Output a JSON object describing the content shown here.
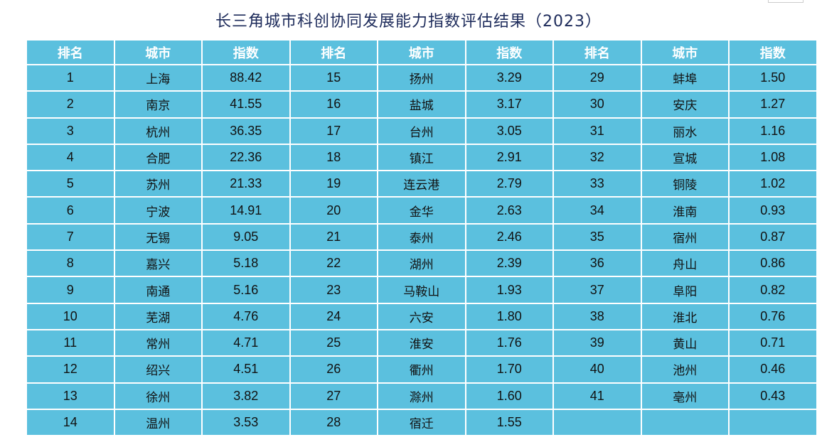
{
  "title": "长三角城市科创协同发展能力指数评估结果（2023）",
  "headers": [
    "排名",
    "城市",
    "指数"
  ],
  "entries": [
    [
      "1",
      "上海",
      "88.42"
    ],
    [
      "2",
      "南京",
      "41.55"
    ],
    [
      "3",
      "杭州",
      "36.35"
    ],
    [
      "4",
      "合肥",
      "22.36"
    ],
    [
      "5",
      "苏州",
      "21.33"
    ],
    [
      "6",
      "宁波",
      "14.91"
    ],
    [
      "7",
      "无锡",
      "9.05"
    ],
    [
      "8",
      "嘉兴",
      "5.18"
    ],
    [
      "9",
      "南通",
      "5.16"
    ],
    [
      "10",
      "芜湖",
      "4.76"
    ],
    [
      "11",
      "常州",
      "4.71"
    ],
    [
      "12",
      "绍兴",
      "4.51"
    ],
    [
      "13",
      "徐州",
      "3.82"
    ],
    [
      "14",
      "温州",
      "3.53"
    ],
    [
      "15",
      "扬州",
      "3.29"
    ],
    [
      "16",
      "盐城",
      "3.17"
    ],
    [
      "17",
      "台州",
      "3.05"
    ],
    [
      "18",
      "镇江",
      "2.91"
    ],
    [
      "19",
      "连云港",
      "2.79"
    ],
    [
      "20",
      "金华",
      "2.63"
    ],
    [
      "21",
      "泰州",
      "2.46"
    ],
    [
      "22",
      "湖州",
      "2.39"
    ],
    [
      "23",
      "马鞍山",
      "1.93"
    ],
    [
      "24",
      "六安",
      "1.80"
    ],
    [
      "25",
      "淮安",
      "1.76"
    ],
    [
      "26",
      "衢州",
      "1.70"
    ],
    [
      "27",
      "滁州",
      "1.60"
    ],
    [
      "28",
      "宿迁",
      "1.55"
    ],
    [
      "29",
      "蚌埠",
      "1.50"
    ],
    [
      "30",
      "安庆",
      "1.27"
    ],
    [
      "31",
      "丽水",
      "1.16"
    ],
    [
      "32",
      "宣城",
      "1.08"
    ],
    [
      "33",
      "铜陵",
      "1.02"
    ],
    [
      "34",
      "淮南",
      "0.93"
    ],
    [
      "35",
      "宿州",
      "0.87"
    ],
    [
      "36",
      "舟山",
      "0.86"
    ],
    [
      "37",
      "阜阳",
      "0.82"
    ],
    [
      "38",
      "淮北",
      "0.76"
    ],
    [
      "39",
      "黄山",
      "0.71"
    ],
    [
      "40",
      "池州",
      "0.46"
    ],
    [
      "41",
      "亳州",
      "0.43"
    ]
  ],
  "colors": {
    "cell": "#5bc0de",
    "header_text": "#ffffff",
    "title": "#1c2a5a"
  }
}
